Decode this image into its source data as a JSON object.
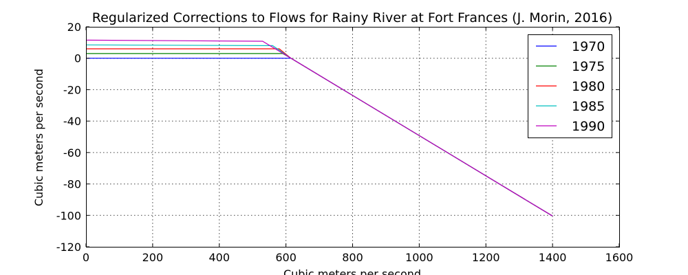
{
  "chart_data": {
    "type": "line",
    "title": "Regularized Corrections to Flows for Rainy River at Fort Frances (J. Morin, 2016)",
    "xlabel": "Cubic meters per second",
    "ylabel": "Cubic meters per second",
    "xlim": [
      0,
      1600
    ],
    "ylim": [
      -120,
      20
    ],
    "xticks": [
      0,
      200,
      400,
      600,
      800,
      1000,
      1200,
      1400,
      1600
    ],
    "yticks": [
      20,
      0,
      -20,
      -40,
      -60,
      -80,
      -100,
      -120
    ],
    "grid": true,
    "legend_position": "top-right",
    "series": [
      {
        "name": "1970",
        "color": "#0000ff",
        "x": [
          0,
          615,
          1400
        ],
        "y": [
          0,
          0,
          -100.4
        ]
      },
      {
        "name": "1975",
        "color": "#008000",
        "x": [
          0,
          590,
          615,
          1400
        ],
        "y": [
          3,
          3,
          0,
          -100.4
        ]
      },
      {
        "name": "1980",
        "color": "#ff0000",
        "x": [
          0,
          580,
          615,
          1400
        ],
        "y": [
          6,
          6,
          0,
          -100.4
        ]
      },
      {
        "name": "1985",
        "color": "#00bfbf",
        "x": [
          0,
          560,
          615,
          1400
        ],
        "y": [
          8.5,
          8,
          0,
          -100.4
        ]
      },
      {
        "name": "1990",
        "color": "#bf00bf",
        "x": [
          0,
          530,
          615,
          1400
        ],
        "y": [
          11.5,
          10.8,
          0,
          -100.4
        ]
      }
    ]
  }
}
